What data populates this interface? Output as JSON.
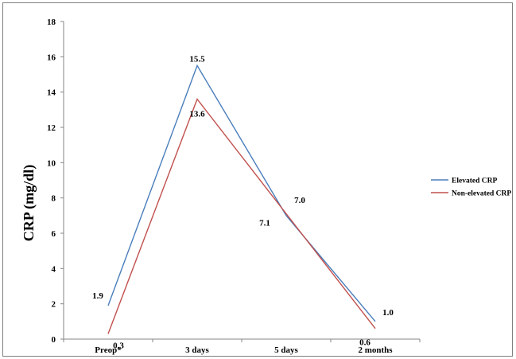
{
  "chart_data": {
    "type": "line",
    "ylabel": "CRP (mg/dl)",
    "xlabel": "",
    "categories": [
      "Preop*",
      "3 days",
      "5 days",
      "2 months"
    ],
    "ylim": [
      0,
      18
    ],
    "yticks": [
      0,
      2,
      4,
      6,
      8,
      10,
      12,
      14,
      16,
      18
    ],
    "grid": false,
    "legend_position": "right",
    "series": [
      {
        "name": "Elevated CRP",
        "color": "#4a7ebb",
        "values": [
          1.9,
          15.5,
          7.0,
          1.0
        ],
        "labels": [
          "1.9",
          "15.5",
          "7.0",
          "1.0"
        ]
      },
      {
        "name": "Non-elevated CRP",
        "color": "#c0504d",
        "values": [
          0.3,
          13.6,
          7.1,
          0.6
        ],
        "labels": [
          "0.3",
          "13.6",
          "7.1",
          "0.6"
        ]
      }
    ]
  }
}
